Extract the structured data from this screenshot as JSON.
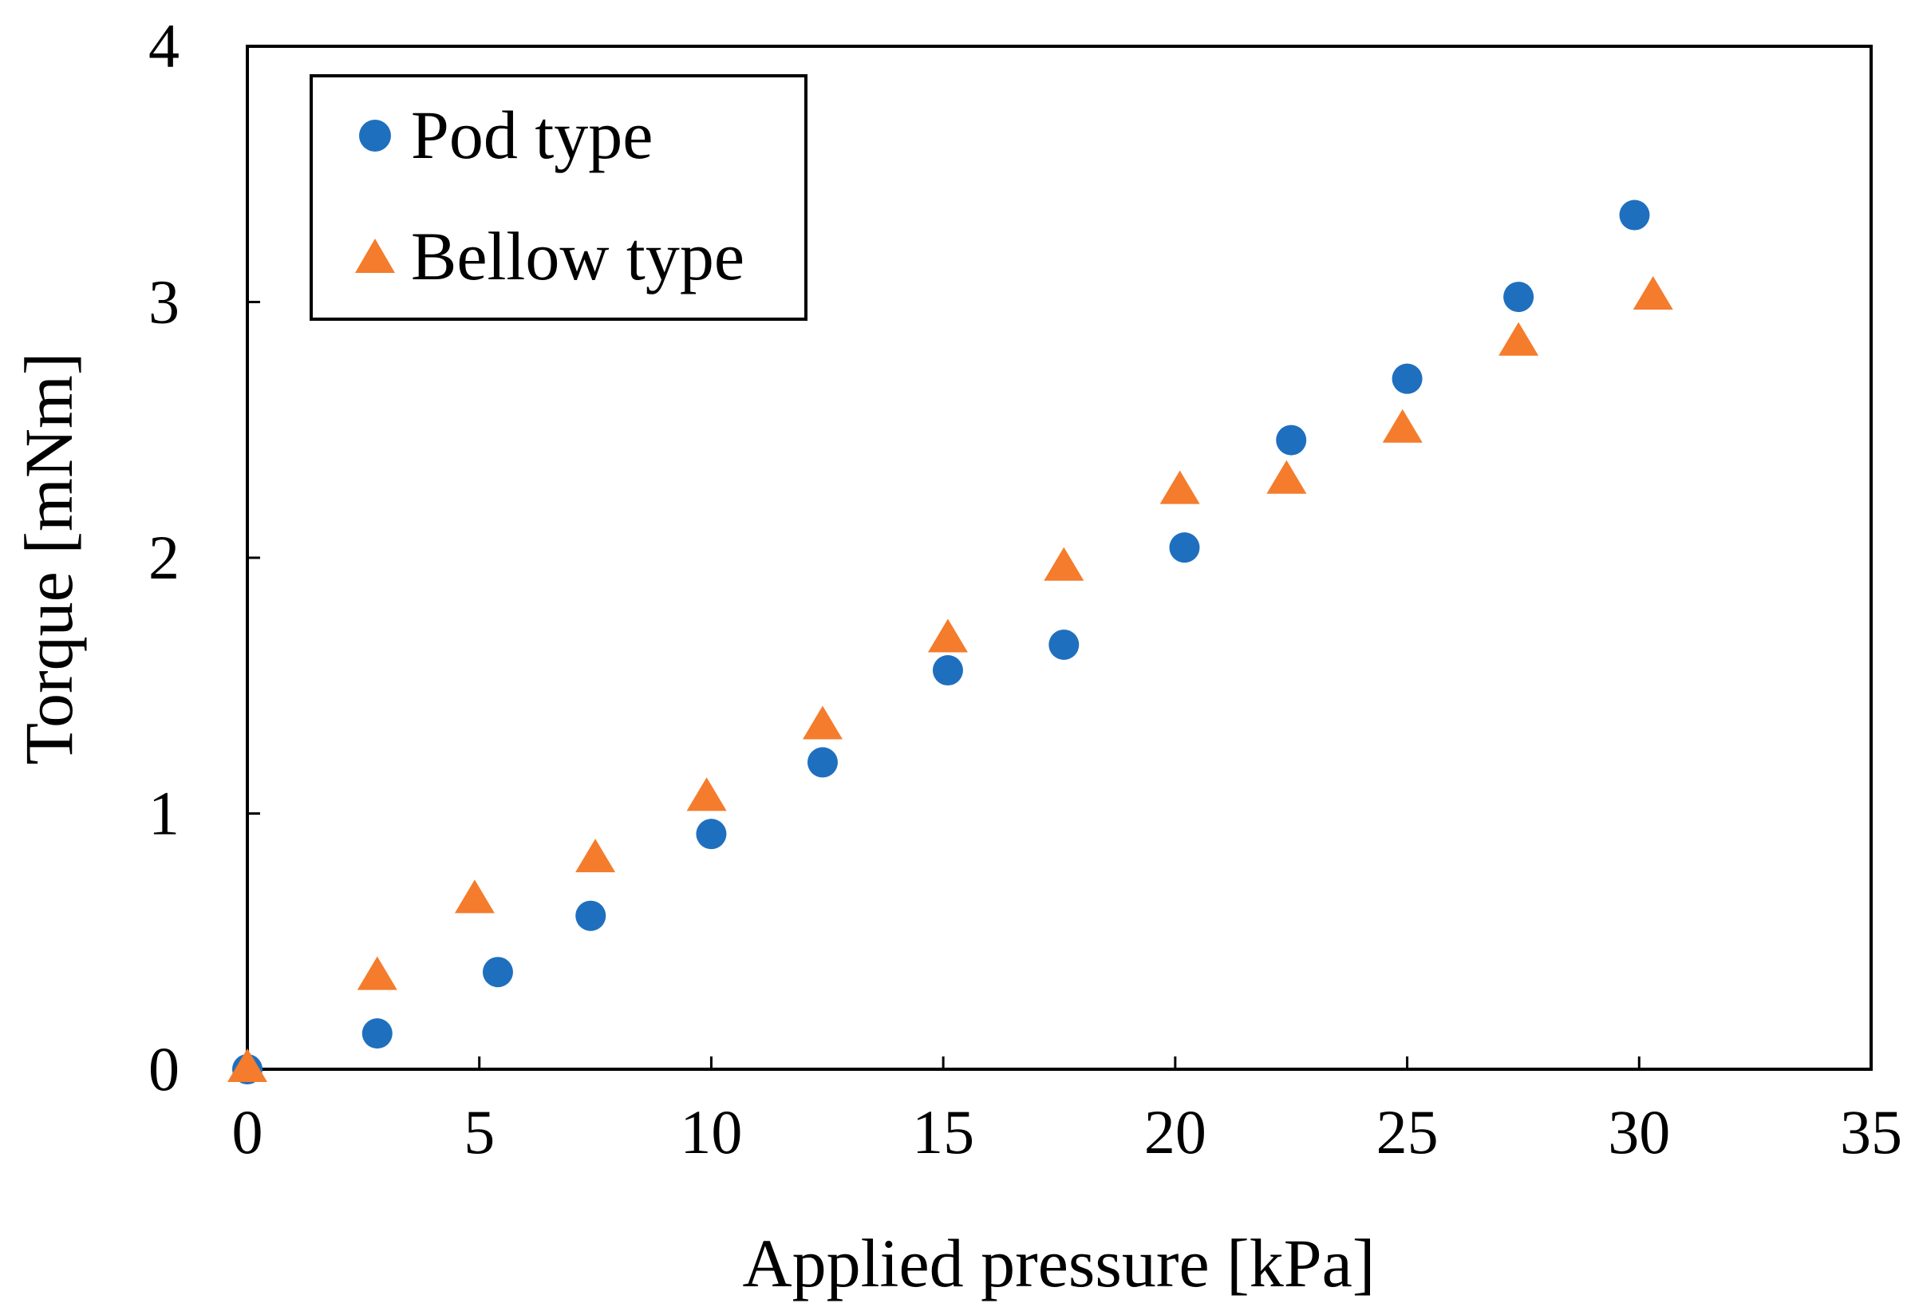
{
  "chart_data": {
    "type": "scatter",
    "xlabel": "Applied pressure [kPa]",
    "ylabel": "Torque [mNm]",
    "xlim": [
      0,
      35
    ],
    "ylim": [
      0,
      4
    ],
    "x_ticks": [
      0,
      5,
      10,
      15,
      20,
      25,
      30,
      35
    ],
    "y_ticks": [
      0,
      1,
      2,
      3,
      4
    ],
    "x_tick_labels": [
      "0",
      "5",
      "10",
      "15",
      "20",
      "25",
      "30",
      "35"
    ],
    "y_tick_labels": [
      "0",
      "1",
      "2",
      "3",
      "4"
    ],
    "grid": false,
    "legend_position": "top-left",
    "series": [
      {
        "name": "Pod type",
        "marker": "circle",
        "color": "#1f6fbf",
        "x": [
          0,
          2.8,
          5.4,
          7.4,
          10.0,
          12.4,
          15.1,
          17.6,
          20.2,
          22.5,
          25.0,
          27.4,
          29.9
        ],
        "y": [
          0,
          0.14,
          0.38,
          0.6,
          0.92,
          1.2,
          1.56,
          1.66,
          2.04,
          2.46,
          2.7,
          3.02,
          3.34
        ]
      },
      {
        "name": "Bellow type",
        "marker": "triangle",
        "color": "#f47c2c",
        "x": [
          0,
          2.8,
          4.9,
          7.5,
          9.9,
          12.4,
          15.1,
          17.6,
          20.1,
          22.4,
          24.9,
          27.4,
          30.3
        ],
        "y": [
          0,
          0.36,
          0.66,
          0.82,
          1.06,
          1.34,
          1.68,
          1.96,
          2.26,
          2.3,
          2.5,
          2.84,
          3.02
        ]
      }
    ]
  }
}
